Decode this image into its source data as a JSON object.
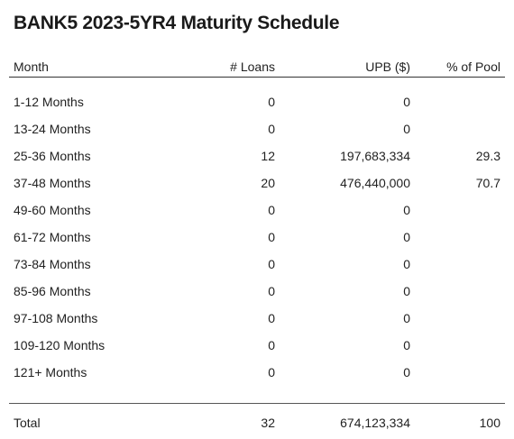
{
  "title": "BANK5 2023-5YR4 Maturity Schedule",
  "columns": {
    "month": "Month",
    "loans": "# Loans",
    "upb": "UPB ($)",
    "pct": "% of Pool"
  },
  "rows": [
    {
      "month": "1-12 Months",
      "loans": "0",
      "upb": "0",
      "pct": ""
    },
    {
      "month": "13-24 Months",
      "loans": "0",
      "upb": "0",
      "pct": ""
    },
    {
      "month": "25-36 Months",
      "loans": "12",
      "upb": "197,683,334",
      "pct": "29.3"
    },
    {
      "month": "37-48 Months",
      "loans": "20",
      "upb": "476,440,000",
      "pct": "70.7"
    },
    {
      "month": "49-60 Months",
      "loans": "0",
      "upb": "0",
      "pct": ""
    },
    {
      "month": "61-72 Months",
      "loans": "0",
      "upb": "0",
      "pct": ""
    },
    {
      "month": "73-84 Months",
      "loans": "0",
      "upb": "0",
      "pct": ""
    },
    {
      "month": "85-96 Months",
      "loans": "0",
      "upb": "0",
      "pct": ""
    },
    {
      "month": "97-108 Months",
      "loans": "0",
      "upb": "0",
      "pct": ""
    },
    {
      "month": "109-120 Months",
      "loans": "0",
      "upb": "0",
      "pct": ""
    },
    {
      "month": "121+ Months",
      "loans": "0",
      "upb": "0",
      "pct": ""
    }
  ],
  "total": {
    "label": "Total",
    "loans": "32",
    "upb": "674,123,334",
    "pct": "100"
  }
}
